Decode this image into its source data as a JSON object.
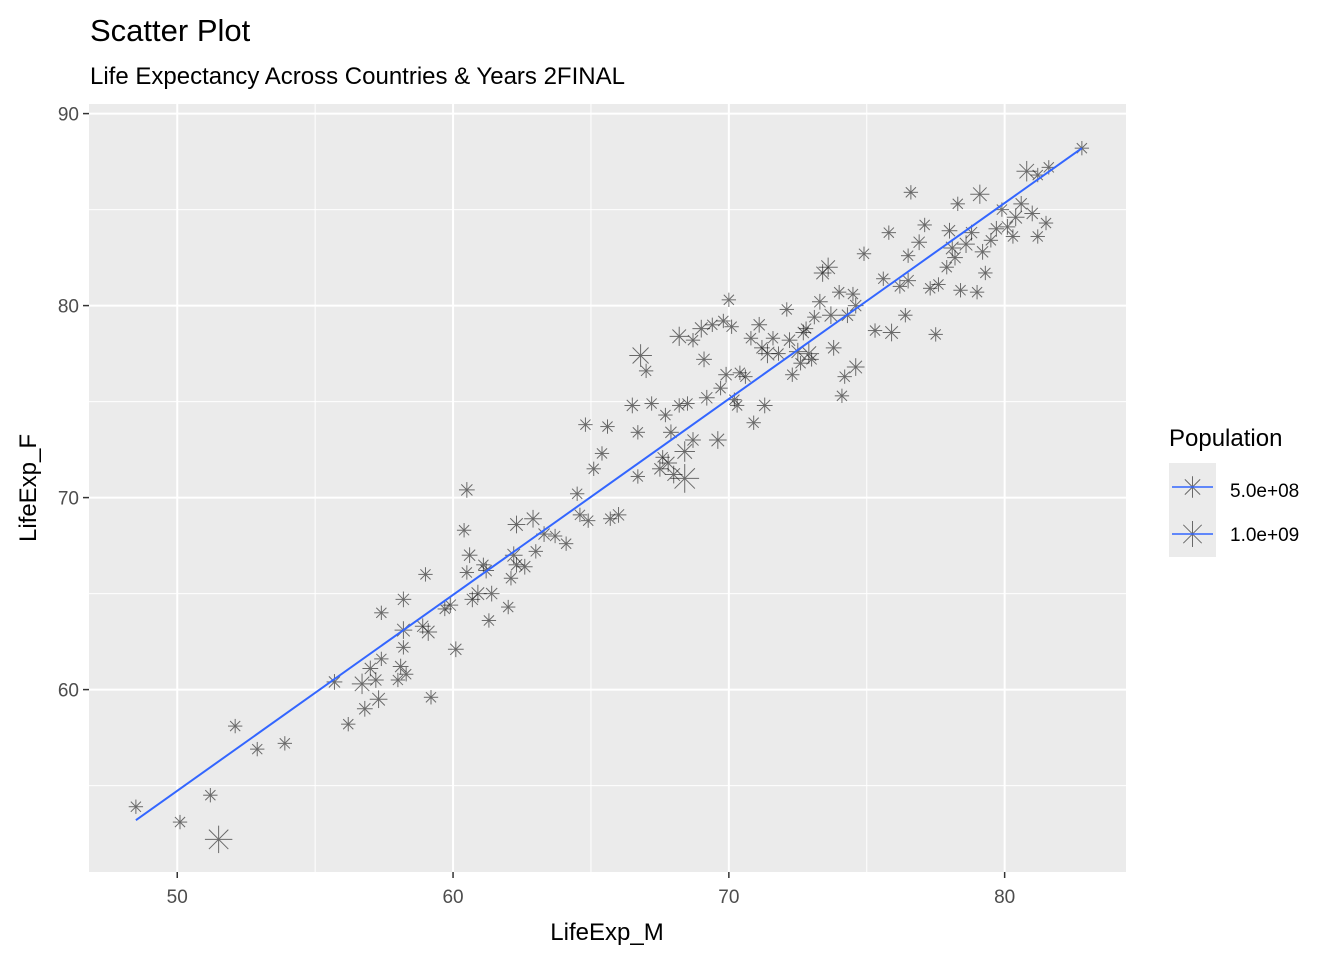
{
  "chart_data": {
    "type": "scatter",
    "title": "Scatter Plot",
    "subtitle": "Life Expectancy Across Countries & Years 2FINAL",
    "xlabel": "LifeExp_M",
    "ylabel": "LifeExp_F",
    "xlim": [
      46.8,
      84.4
    ],
    "ylim": [
      50.5,
      90.5
    ],
    "x_ticks": [
      50,
      60,
      70,
      80
    ],
    "y_ticks": [
      60,
      70,
      80,
      90
    ],
    "x_tick_labels": [
      "50",
      "60",
      "70",
      "80"
    ],
    "y_tick_labels": [
      "60",
      "70",
      "80",
      "90"
    ],
    "grid": true,
    "point_shape": "asterisk",
    "point_color": "#000000",
    "panel_background": "#ebebeb",
    "legend": {
      "title": "Population",
      "position": "right",
      "entries": [
        {
          "label": "5.0e+08",
          "population": 500000000
        },
        {
          "label": "1.0e+09",
          "population": 1000000000
        }
      ]
    },
    "fit_line": {
      "type": "linear",
      "color": "#3366ff",
      "x": [
        48.5,
        82.8
      ],
      "y": [
        53.2,
        88.2
      ]
    },
    "series": [
      {
        "points": [
          [
            48.5,
            53.9,
            0.05
          ],
          [
            50.1,
            53.1,
            0.05
          ],
          [
            51.2,
            54.5,
            0.05
          ],
          [
            51.5,
            52.2,
            1.2
          ],
          [
            52.1,
            58.1,
            0.05
          ],
          [
            52.9,
            56.9,
            0.05
          ],
          [
            53.9,
            57.2,
            0.05
          ],
          [
            55.7,
            60.4,
            0.1
          ],
          [
            56.2,
            58.2,
            0.05
          ],
          [
            56.7,
            60.3,
            0.4
          ],
          [
            56.8,
            59.0,
            0.1
          ],
          [
            57.0,
            61.1,
            0.1
          ],
          [
            57.2,
            60.5,
            0.1
          ],
          [
            57.3,
            59.5,
            0.2
          ],
          [
            57.4,
            64.0,
            0.05
          ],
          [
            57.4,
            61.6,
            0.05
          ],
          [
            58.0,
            60.5,
            0.05
          ],
          [
            58.1,
            61.2,
            0.1
          ],
          [
            58.2,
            62.2,
            0.05
          ],
          [
            58.2,
            63.1,
            0.2
          ],
          [
            58.2,
            64.7,
            0.1
          ],
          [
            58.3,
            60.8,
            0.05
          ],
          [
            58.9,
            63.3,
            0.1
          ],
          [
            59.0,
            66.0,
            0.05
          ],
          [
            59.1,
            63.0,
            0.2
          ],
          [
            59.2,
            59.6,
            0.05
          ],
          [
            59.7,
            64.2,
            0.05
          ],
          [
            59.9,
            64.4,
            0.1
          ],
          [
            60.1,
            62.1,
            0.1
          ],
          [
            60.4,
            68.3,
            0.05
          ],
          [
            60.5,
            66.1,
            0.05
          ],
          [
            60.5,
            70.4,
            0.1
          ],
          [
            60.6,
            67.0,
            0.1
          ],
          [
            60.7,
            64.7,
            0.1
          ],
          [
            60.9,
            65.0,
            0.2
          ],
          [
            61.1,
            66.5,
            0.05
          ],
          [
            61.2,
            66.2,
            0.1
          ],
          [
            61.3,
            63.6,
            0.05
          ],
          [
            61.4,
            65.0,
            0.1
          ],
          [
            62.0,
            64.3,
            0.05
          ],
          [
            62.1,
            65.8,
            0.05
          ],
          [
            62.2,
            67.0,
            0.2
          ],
          [
            62.3,
            66.5,
            0.1
          ],
          [
            62.3,
            68.6,
            0.2
          ],
          [
            62.6,
            66.4,
            0.1
          ],
          [
            62.9,
            68.9,
            0.2
          ],
          [
            63.0,
            67.2,
            0.05
          ],
          [
            63.3,
            68.1,
            0.1
          ],
          [
            63.7,
            68.0,
            0.05
          ],
          [
            64.1,
            67.6,
            0.05
          ],
          [
            64.5,
            70.2,
            0.05
          ],
          [
            64.6,
            69.1,
            0.05
          ],
          [
            64.8,
            73.8,
            0.05
          ],
          [
            64.9,
            68.8,
            0.05
          ],
          [
            65.1,
            71.5,
            0.05
          ],
          [
            65.4,
            72.3,
            0.05
          ],
          [
            65.6,
            73.7,
            0.05
          ],
          [
            65.7,
            68.9,
            0.05
          ],
          [
            66.0,
            69.1,
            0.1
          ],
          [
            66.5,
            74.8,
            0.1
          ],
          [
            66.7,
            71.1,
            0.05
          ],
          [
            66.7,
            73.4,
            0.05
          ],
          [
            66.8,
            77.4,
            0.6
          ],
          [
            67.0,
            76.6,
            0.05
          ],
          [
            67.2,
            74.9,
            0.05
          ],
          [
            67.5,
            71.5,
            0.1
          ],
          [
            67.6,
            72.1,
            0.05
          ],
          [
            67.7,
            74.3,
            0.05
          ],
          [
            67.8,
            71.8,
            0.2
          ],
          [
            67.9,
            73.4,
            0.1
          ],
          [
            68.0,
            71.2,
            0.2
          ],
          [
            68.2,
            74.8,
            0.05
          ],
          [
            68.2,
            78.4,
            0.3
          ],
          [
            68.4,
            72.4,
            0.4
          ],
          [
            68.4,
            71.0,
            1.4
          ],
          [
            68.5,
            74.9,
            0.05
          ],
          [
            68.7,
            73.0,
            0.1
          ],
          [
            68.7,
            78.2,
            0.05
          ],
          [
            69.0,
            78.8,
            0.2
          ],
          [
            69.1,
            77.2,
            0.1
          ],
          [
            69.2,
            75.2,
            0.1
          ],
          [
            69.4,
            79.0,
            0.05
          ],
          [
            69.6,
            73.0,
            0.2
          ],
          [
            69.7,
            75.7,
            0.05
          ],
          [
            69.8,
            79.2,
            0.05
          ],
          [
            69.9,
            76.4,
            0.1
          ],
          [
            70.0,
            80.3,
            0.05
          ],
          [
            70.1,
            78.9,
            0.05
          ],
          [
            70.2,
            75.1,
            0.05
          ],
          [
            70.3,
            74.8,
            0.05
          ],
          [
            70.4,
            76.5,
            0.05
          ],
          [
            70.6,
            76.3,
            0.05
          ],
          [
            70.8,
            78.3,
            0.05
          ],
          [
            70.9,
            73.9,
            0.05
          ],
          [
            71.1,
            79.0,
            0.1
          ],
          [
            71.2,
            77.8,
            0.1
          ],
          [
            71.3,
            74.8,
            0.1
          ],
          [
            71.4,
            77.5,
            0.3
          ],
          [
            71.6,
            78.3,
            0.05
          ],
          [
            71.8,
            77.5,
            0.05
          ],
          [
            72.1,
            79.8,
            0.05
          ],
          [
            72.2,
            78.2,
            0.1
          ],
          [
            72.3,
            76.4,
            0.05
          ],
          [
            72.5,
            77.6,
            0.2
          ],
          [
            72.6,
            77.0,
            0.05
          ],
          [
            72.7,
            78.6,
            0.1
          ],
          [
            72.8,
            78.8,
            0.05
          ],
          [
            72.9,
            77.5,
            0.4
          ],
          [
            73.0,
            77.2,
            0.05
          ],
          [
            73.1,
            79.4,
            0.05
          ],
          [
            73.3,
            80.2,
            0.1
          ],
          [
            73.4,
            81.7,
            0.2
          ],
          [
            73.6,
            82.0,
            0.3
          ],
          [
            73.7,
            79.5,
            0.2
          ],
          [
            73.8,
            77.8,
            0.1
          ],
          [
            74.0,
            80.7,
            0.05
          ],
          [
            74.1,
            75.3,
            0.05
          ],
          [
            74.2,
            76.3,
            0.05
          ],
          [
            74.3,
            79.5,
            0.1
          ],
          [
            74.5,
            80.6,
            0.05
          ],
          [
            74.6,
            80.0,
            0.1
          ],
          [
            74.6,
            76.8,
            0.2
          ],
          [
            74.9,
            82.7,
            0.05
          ],
          [
            75.3,
            78.7,
            0.05
          ],
          [
            75.6,
            81.4,
            0.05
          ],
          [
            75.8,
            83.8,
            0.05
          ],
          [
            75.9,
            78.6,
            0.2
          ],
          [
            76.2,
            81.0,
            0.05
          ],
          [
            76.4,
            79.5,
            0.05
          ],
          [
            76.5,
            82.6,
            0.05
          ],
          [
            76.5,
            81.3,
            0.1
          ],
          [
            76.6,
            85.9,
            0.05
          ],
          [
            76.9,
            83.3,
            0.1
          ],
          [
            77.1,
            84.2,
            0.05
          ],
          [
            77.3,
            80.9,
            0.05
          ],
          [
            77.5,
            78.5,
            0.05
          ],
          [
            77.6,
            81.1,
            0.05
          ],
          [
            77.9,
            82.0,
            0.05
          ],
          [
            78.0,
            83.9,
            0.1
          ],
          [
            78.1,
            83.0,
            0.2
          ],
          [
            78.2,
            82.5,
            0.1
          ],
          [
            78.3,
            85.3,
            0.05
          ],
          [
            78.4,
            80.8,
            0.05
          ],
          [
            78.6,
            83.2,
            0.2
          ],
          [
            78.8,
            83.8,
            0.1
          ],
          [
            79.0,
            80.7,
            0.05
          ],
          [
            79.1,
            85.8,
            0.3
          ],
          [
            79.2,
            82.8,
            0.1
          ],
          [
            79.3,
            81.7,
            0.05
          ],
          [
            79.5,
            83.4,
            0.05
          ],
          [
            79.7,
            84.0,
            0.1
          ],
          [
            79.9,
            85.0,
            0.05
          ],
          [
            80.1,
            84.1,
            0.1
          ],
          [
            80.3,
            83.6,
            0.05
          ],
          [
            80.4,
            84.6,
            0.2
          ],
          [
            80.6,
            85.3,
            0.1
          ],
          [
            80.8,
            87.0,
            0.4
          ],
          [
            81.0,
            84.8,
            0.1
          ],
          [
            81.2,
            83.6,
            0.05
          ],
          [
            81.2,
            86.8,
            0.05
          ],
          [
            81.5,
            84.3,
            0.05
          ],
          [
            81.6,
            87.2,
            0.05
          ],
          [
            82.8,
            88.2,
            0.05
          ]
        ]
      }
    ]
  }
}
